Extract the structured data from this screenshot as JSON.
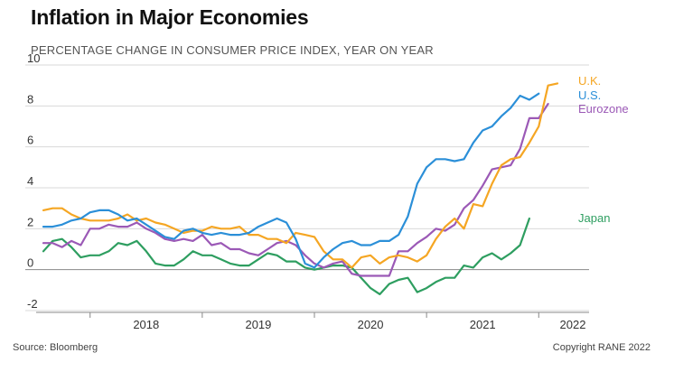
{
  "title": "Inflation in Major Economies",
  "subtitle": "PERCENTAGE CHANGE IN CONSUMER PRICE INDEX, YEAR ON YEAR",
  "footer": {
    "source": "Source: Bloomberg",
    "copyright": "Copyright RANE 2022"
  },
  "chart_data": {
    "type": "line",
    "title": "Inflation in Major Economies",
    "subtitle": "PERCENTAGE CHANGE IN CONSUMER PRICE INDEX, YEAR ON YEAR",
    "xlabel": "",
    "ylabel": "",
    "ylim": [
      -2,
      10
    ],
    "yticks": [
      -2,
      0,
      2,
      4,
      6,
      8,
      10
    ],
    "xticks": [
      "2018",
      "2019",
      "2020",
      "2021",
      "2022"
    ],
    "grid": "horizontal",
    "legend": "right (inline labels)",
    "x": [
      "2017-08",
      "2017-09",
      "2017-10",
      "2017-11",
      "2017-12",
      "2018-01",
      "2018-02",
      "2018-03",
      "2018-04",
      "2018-05",
      "2018-06",
      "2018-07",
      "2018-08",
      "2018-09",
      "2018-10",
      "2018-11",
      "2018-12",
      "2019-01",
      "2019-02",
      "2019-03",
      "2019-04",
      "2019-05",
      "2019-06",
      "2019-07",
      "2019-08",
      "2019-09",
      "2019-10",
      "2019-11",
      "2019-12",
      "2020-01",
      "2020-02",
      "2020-03",
      "2020-04",
      "2020-05",
      "2020-06",
      "2020-07",
      "2020-08",
      "2020-09",
      "2020-10",
      "2020-11",
      "2020-12",
      "2021-01",
      "2021-02",
      "2021-03",
      "2021-04",
      "2021-05",
      "2021-06",
      "2021-07",
      "2021-08",
      "2021-09",
      "2021-10",
      "2021-11",
      "2021-12",
      "2022-01",
      "2022-02",
      "2022-03",
      "2022-04",
      "2022-05",
      "2022-06"
    ],
    "series": [
      {
        "name": "U.K.",
        "color": "#f5a623",
        "values": [
          2.9,
          3.0,
          3.0,
          2.7,
          2.5,
          2.4,
          2.4,
          2.4,
          2.5,
          2.7,
          2.4,
          2.5,
          2.3,
          2.2,
          2.0,
          1.8,
          1.9,
          1.9,
          2.1,
          2.0,
          2.0,
          2.1,
          1.7,
          1.7,
          1.5,
          1.5,
          1.3,
          1.8,
          1.7,
          1.6,
          0.9,
          0.5,
          0.5,
          0.1,
          0.6,
          0.7,
          0.3,
          0.6,
          0.7,
          0.6,
          0.4,
          0.7,
          1.5,
          2.1,
          2.5,
          2.0,
          3.2,
          3.1,
          4.2,
          5.1,
          5.4,
          5.5,
          6.2,
          7.0,
          9.0,
          9.1,
          null,
          null,
          null
        ]
      },
      {
        "name": "U.S.",
        "color": "#2b8fd8",
        "values": [
          2.1,
          2.1,
          2.2,
          2.4,
          2.5,
          2.8,
          2.9,
          2.9,
          2.7,
          2.4,
          2.5,
          2.2,
          1.9,
          1.6,
          1.5,
          1.9,
          2.0,
          1.8,
          1.7,
          1.8,
          1.7,
          1.7,
          1.8,
          2.1,
          2.3,
          2.5,
          2.3,
          1.5,
          0.3,
          0.1,
          0.6,
          1.0,
          1.3,
          1.4,
          1.2,
          1.2,
          1.4,
          1.4,
          1.7,
          2.6,
          4.2,
          5.0,
          5.4,
          5.4,
          5.3,
          5.4,
          6.2,
          6.8,
          7.0,
          7.5,
          7.9,
          8.5,
          8.3,
          8.6,
          null,
          null,
          null,
          null,
          null
        ]
      },
      {
        "name": "Eurozone",
        "color": "#9b59b6",
        "values": [
          1.3,
          1.3,
          1.1,
          1.4,
          1.2,
          2.0,
          2.0,
          2.2,
          2.1,
          2.1,
          2.3,
          2.0,
          1.8,
          1.5,
          1.4,
          1.5,
          1.4,
          1.7,
          1.2,
          1.3,
          1.0,
          1.0,
          0.8,
          0.7,
          1.0,
          1.3,
          1.4,
          1.2,
          0.7,
          0.3,
          0.1,
          0.3,
          0.4,
          -0.2,
          -0.3,
          -0.3,
          -0.3,
          -0.3,
          0.9,
          0.9,
          1.3,
          1.6,
          2.0,
          1.9,
          2.2,
          3.0,
          3.4,
          4.1,
          4.9,
          5.0,
          5.1,
          5.9,
          7.4,
          7.4,
          8.1,
          null,
          null,
          null,
          null
        ]
      },
      {
        "name": "Japan",
        "color": "#2e9e60",
        "values": [
          0.9,
          1.4,
          1.5,
          1.1,
          0.6,
          0.7,
          0.7,
          0.9,
          1.3,
          1.2,
          1.4,
          0.9,
          0.3,
          0.2,
          0.2,
          0.5,
          0.9,
          0.7,
          0.7,
          0.5,
          0.3,
          0.2,
          0.2,
          0.5,
          0.8,
          0.7,
          0.4,
          0.4,
          0.1,
          0.0,
          0.1,
          0.2,
          0.2,
          0.1,
          -0.4,
          -0.9,
          -1.2,
          -0.7,
          -0.5,
          -0.4,
          -1.1,
          -0.9,
          -0.6,
          -0.4,
          -0.4,
          0.2,
          0.1,
          0.6,
          0.8,
          0.5,
          0.8,
          1.2,
          2.5,
          null,
          null,
          null,
          null,
          null,
          null
        ]
      }
    ]
  }
}
